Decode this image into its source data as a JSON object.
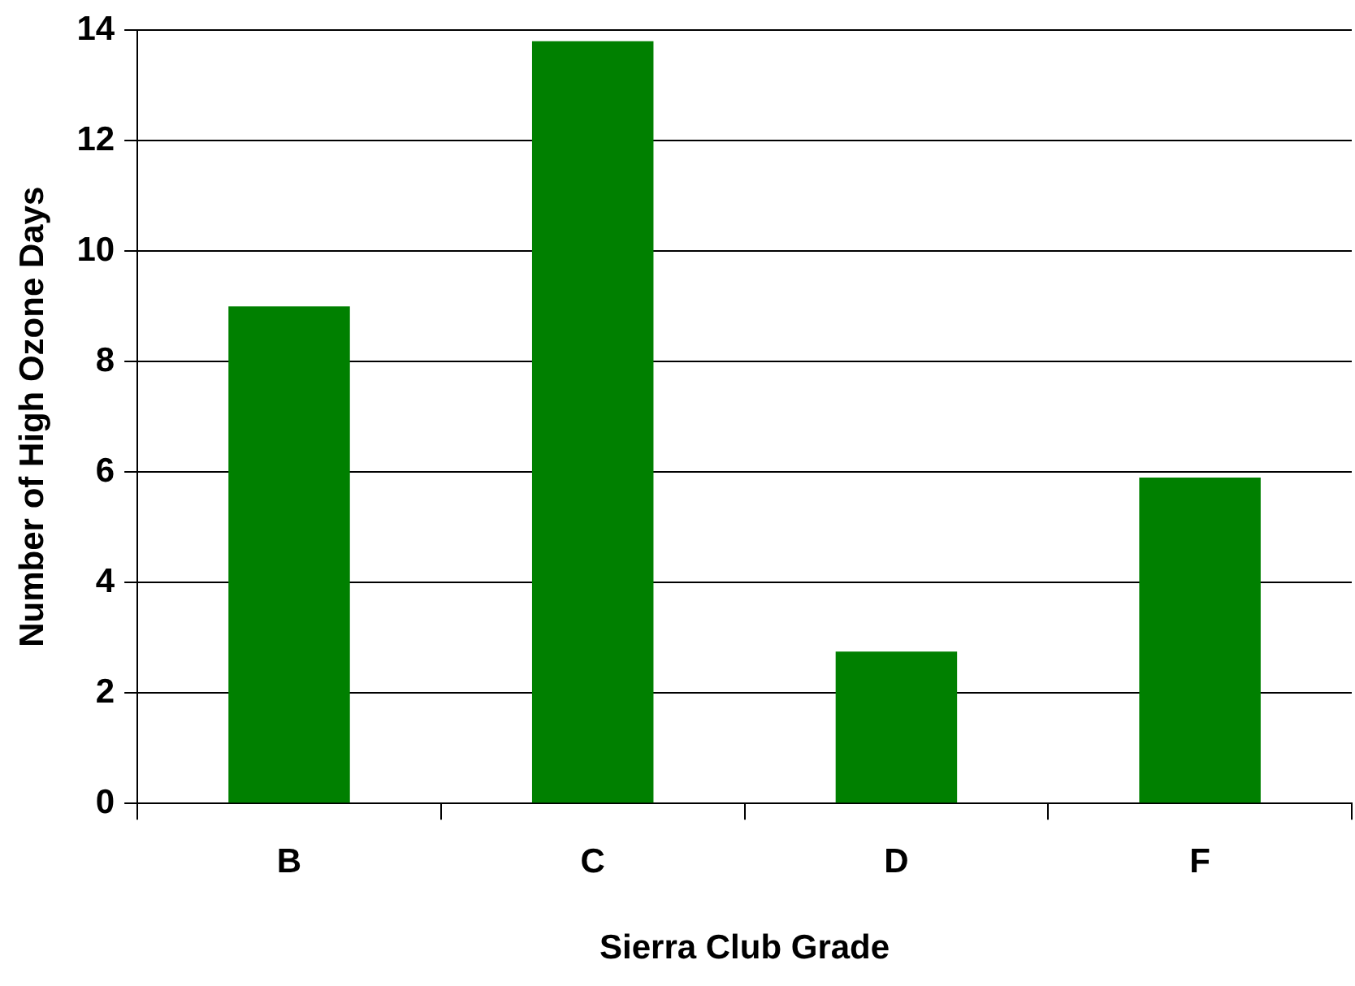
{
  "chart_data": {
    "type": "bar",
    "xlabel": "Sierra Club Grade",
    "ylabel": "Number of High Ozone Days",
    "categories": [
      "B",
      "C",
      "D",
      "F"
    ],
    "values": [
      9,
      13.8,
      2.75,
      5.9
    ],
    "color": "#008000",
    "ylim": [
      0,
      14
    ],
    "yticks": [
      0,
      2,
      4,
      6,
      8,
      10,
      12,
      14
    ],
    "grid": "y",
    "legend": false
  }
}
